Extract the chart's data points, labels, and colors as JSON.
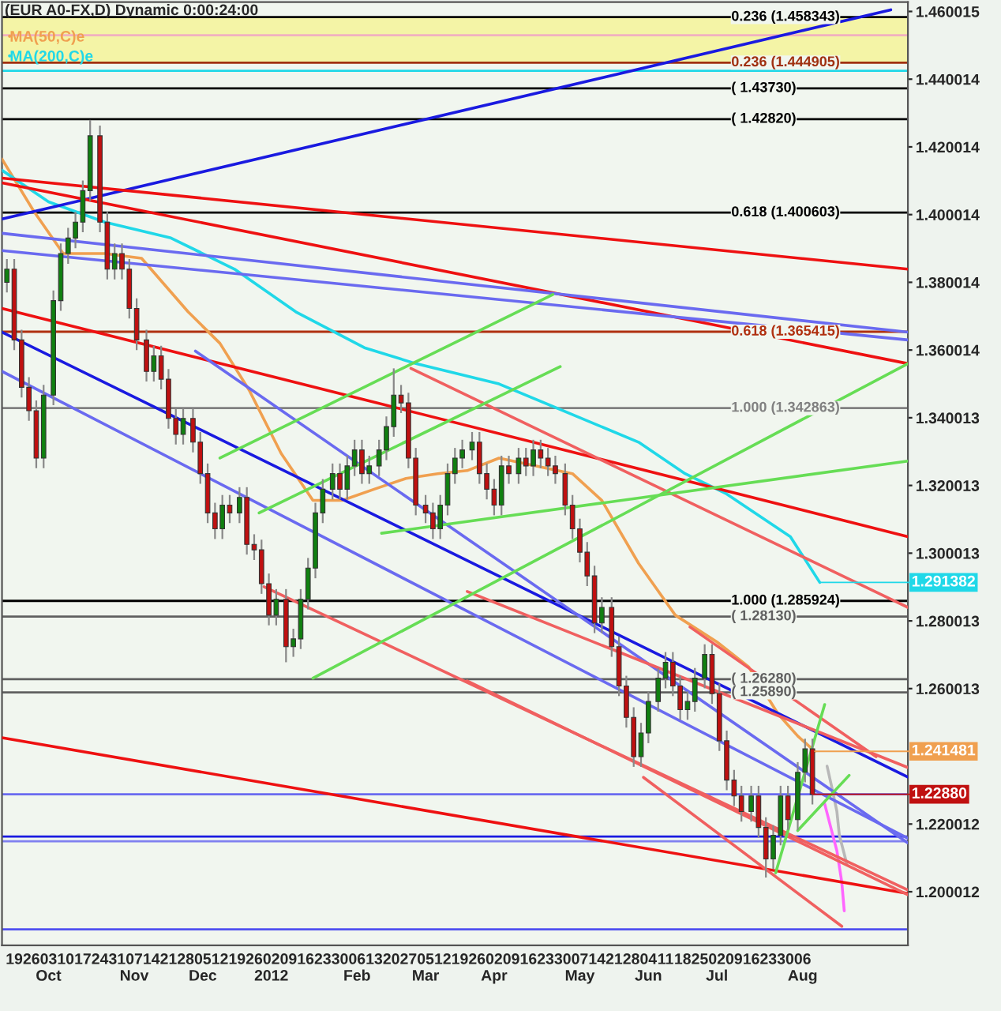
{
  "chart_data": {
    "type": "candlestick",
    "title": "(EUR A0-FX,D) Dynamic 0:00:24:00",
    "x": [
      "2011-09-16",
      "2011-09-19",
      "2011-09-22",
      "2011-09-25",
      "2011-09-28",
      "2011-10-01",
      "2011-10-05",
      "2011-10-08",
      "2011-10-11",
      "2011-10-14",
      "2011-10-17",
      "2011-10-20",
      "2011-10-24",
      "2011-10-27",
      "2011-10-30",
      "2011-11-02",
      "2011-11-05",
      "2011-11-08",
      "2011-11-12",
      "2011-11-15",
      "2011-11-18",
      "2011-11-21",
      "2011-11-24",
      "2011-11-27",
      "2011-12-01",
      "2011-12-04",
      "2011-12-07",
      "2011-12-10",
      "2011-12-13",
      "2011-12-16",
      "2011-12-20",
      "2011-12-23",
      "2011-12-26",
      "2011-12-29",
      "2012-01-01",
      "2012-01-04",
      "2012-01-08",
      "2012-01-11",
      "2012-01-14",
      "2012-01-17",
      "2012-01-20",
      "2012-01-23",
      "2012-01-27",
      "2012-01-30",
      "2012-02-02",
      "2012-02-05",
      "2012-02-08",
      "2012-02-11",
      "2012-02-15",
      "2012-02-18",
      "2012-02-21",
      "2012-02-24",
      "2012-02-27",
      "2012-03-01",
      "2012-03-05",
      "2012-03-08",
      "2012-03-11",
      "2012-03-14",
      "2012-03-17",
      "2012-03-20",
      "2012-03-24",
      "2012-03-27",
      "2012-03-30",
      "2012-04-02",
      "2012-04-05",
      "2012-04-08",
      "2012-04-12",
      "2012-04-15",
      "2012-04-18",
      "2012-04-21",
      "2012-04-24",
      "2012-04-27",
      "2012-05-01",
      "2012-05-04",
      "2012-05-07",
      "2012-05-10",
      "2012-05-13",
      "2012-05-16",
      "2012-05-20",
      "2012-05-23",
      "2012-05-26",
      "2012-05-29",
      "2012-06-01",
      "2012-06-04",
      "2012-06-08",
      "2012-06-11",
      "2012-06-14",
      "2012-06-17",
      "2012-06-20",
      "2012-06-23",
      "2012-06-27",
      "2012-06-30",
      "2012-07-03",
      "2012-07-06",
      "2012-07-09",
      "2012-07-12",
      "2012-07-16",
      "2012-07-19",
      "2012-07-22",
      "2012-07-25",
      "2012-07-28",
      "2012-07-31",
      "2012-08-04",
      "2012-08-07",
      "2012-08-10"
    ],
    "ohlc": [
      [
        1.38,
        1.3869,
        1.377,
        1.3839
      ],
      [
        1.3839,
        1.3869,
        1.36,
        1.363
      ],
      [
        1.363,
        1.366,
        1.346,
        1.349
      ],
      [
        1.349,
        1.352,
        1.3391,
        1.3421
      ],
      [
        1.3421,
        1.3451,
        1.3251,
        1.3281
      ],
      [
        1.3281,
        1.3497,
        1.3251,
        1.3467
      ],
      [
        1.3467,
        1.3776,
        1.3437,
        1.3746
      ],
      [
        1.3746,
        1.3915,
        1.3716,
        1.3885
      ],
      [
        1.3885,
        1.3961,
        1.3855,
        1.3931
      ],
      [
        1.3931,
        1.4008,
        1.3901,
        1.3978
      ],
      [
        1.3978,
        1.4101,
        1.3948,
        1.4071
      ],
      [
        1.4071,
        1.428,
        1.4041,
        1.4233
      ],
      [
        1.4233,
        1.4263,
        1.3948,
        1.3978
      ],
      [
        1.3978,
        1.4008,
        1.3809,
        1.3839
      ],
      [
        1.3839,
        1.3915,
        1.3809,
        1.3885
      ],
      [
        1.3885,
        1.3915,
        1.3809,
        1.3839
      ],
      [
        1.3839,
        1.3869,
        1.3693,
        1.3723
      ],
      [
        1.3723,
        1.3753,
        1.36,
        1.363
      ],
      [
        1.363,
        1.366,
        1.3507,
        1.3537
      ],
      [
        1.3537,
        1.3613,
        1.3507,
        1.3583
      ],
      [
        1.3583,
        1.3613,
        1.3484,
        1.3514
      ],
      [
        1.3514,
        1.3544,
        1.3368,
        1.3398
      ],
      [
        1.3398,
        1.3428,
        1.3321,
        1.3351
      ],
      [
        1.3351,
        1.3428,
        1.3321,
        1.3398
      ],
      [
        1.3398,
        1.3428,
        1.3298,
        1.3328
      ],
      [
        1.3328,
        1.3358,
        1.3205,
        1.3235
      ],
      [
        1.3235,
        1.3265,
        1.3089,
        1.3119
      ],
      [
        1.3119,
        1.3149,
        1.3042,
        1.3072
      ],
      [
        1.3072,
        1.3172,
        1.3042,
        1.3142
      ],
      [
        1.3142,
        1.3172,
        1.3089,
        1.3119
      ],
      [
        1.3119,
        1.3195,
        1.3089,
        1.3165
      ],
      [
        1.3165,
        1.3195,
        1.2996,
        1.3026
      ],
      [
        1.3026,
        1.3056,
        1.298,
        1.301
      ],
      [
        1.301,
        1.304,
        1.288,
        1.291
      ],
      [
        1.291,
        1.294,
        1.2787,
        1.2817
      ],
      [
        1.2817,
        1.2894,
        1.2787,
        1.2864
      ],
      [
        1.2864,
        1.2894,
        1.2678,
        1.2724
      ],
      [
        1.2724,
        1.2777,
        1.2694,
        1.2747
      ],
      [
        1.2747,
        1.2894,
        1.2717,
        1.2864
      ],
      [
        1.2864,
        1.2986,
        1.2834,
        1.2956
      ],
      [
        1.2956,
        1.3149,
        1.2926,
        1.3119
      ],
      [
        1.3119,
        1.3219,
        1.3089,
        1.3189
      ],
      [
        1.3189,
        1.3265,
        1.3159,
        1.3235
      ],
      [
        1.3235,
        1.3265,
        1.3159,
        1.3189
      ],
      [
        1.3189,
        1.3288,
        1.3159,
        1.3258
      ],
      [
        1.3258,
        1.3335,
        1.3228,
        1.3305
      ],
      [
        1.3305,
        1.3335,
        1.3205,
        1.3235
      ],
      [
        1.3235,
        1.3288,
        1.3205,
        1.3258
      ],
      [
        1.3258,
        1.3335,
        1.3228,
        1.3305
      ],
      [
        1.3305,
        1.3404,
        1.3275,
        1.3374
      ],
      [
        1.3374,
        1.3546,
        1.3344,
        1.3467
      ],
      [
        1.3467,
        1.3497,
        1.3414,
        1.3444
      ],
      [
        1.3444,
        1.3474,
        1.3251,
        1.3281
      ],
      [
        1.3281,
        1.3311,
        1.3112,
        1.3142
      ],
      [
        1.3142,
        1.3172,
        1.3089,
        1.3119
      ],
      [
        1.3119,
        1.3149,
        1.3042,
        1.3072
      ],
      [
        1.3072,
        1.3172,
        1.3042,
        1.3142
      ],
      [
        1.3142,
        1.3265,
        1.3112,
        1.3235
      ],
      [
        1.3235,
        1.3311,
        1.3205,
        1.3281
      ],
      [
        1.3281,
        1.3335,
        1.3251,
        1.3305
      ],
      [
        1.3305,
        1.3358,
        1.3275,
        1.3328
      ],
      [
        1.3328,
        1.3358,
        1.3205,
        1.3235
      ],
      [
        1.3235,
        1.3265,
        1.3159,
        1.3189
      ],
      [
        1.3189,
        1.3219,
        1.3112,
        1.3142
      ],
      [
        1.3142,
        1.3288,
        1.3112,
        1.3258
      ],
      [
        1.3258,
        1.3288,
        1.3205,
        1.3235
      ],
      [
        1.3235,
        1.3311,
        1.3205,
        1.3281
      ],
      [
        1.3281,
        1.3311,
        1.3228,
        1.3258
      ],
      [
        1.3258,
        1.3335,
        1.3228,
        1.3305
      ],
      [
        1.3305,
        1.3335,
        1.3251,
        1.3281
      ],
      [
        1.3281,
        1.3311,
        1.3228,
        1.3258
      ],
      [
        1.3258,
        1.3288,
        1.3205,
        1.3235
      ],
      [
        1.3235,
        1.3265,
        1.3112,
        1.3142
      ],
      [
        1.3142,
        1.3172,
        1.3042,
        1.3072
      ],
      [
        1.3072,
        1.3102,
        1.2973,
        1.3003
      ],
      [
        1.3003,
        1.3033,
        1.2903,
        1.2933
      ],
      [
        1.2933,
        1.2963,
        1.2764,
        1.2794
      ],
      [
        1.2794,
        1.287,
        1.2764,
        1.284
      ],
      [
        1.284,
        1.287,
        1.2694,
        1.2724
      ],
      [
        1.2724,
        1.2754,
        1.2578,
        1.2608
      ],
      [
        1.2608,
        1.2638,
        1.2485,
        1.2515
      ],
      [
        1.2515,
        1.2545,
        1.2369,
        1.2399
      ],
      [
        1.2399,
        1.2499,
        1.2369,
        1.2469
      ],
      [
        1.2469,
        1.2592,
        1.2439,
        1.2562
      ],
      [
        1.2562,
        1.2661,
        1.2532,
        1.2631
      ],
      [
        1.2631,
        1.2708,
        1.2601,
        1.2678
      ],
      [
        1.2678,
        1.2708,
        1.2578,
        1.2608
      ],
      [
        1.2608,
        1.2638,
        1.2508,
        1.2538
      ],
      [
        1.2538,
        1.2592,
        1.2508,
        1.2562
      ],
      [
        1.2562,
        1.2661,
        1.2532,
        1.2631
      ],
      [
        1.2631,
        1.2731,
        1.2601,
        1.2701
      ],
      [
        1.2701,
        1.2731,
        1.2555,
        1.2585
      ],
      [
        1.2585,
        1.2615,
        1.2416,
        1.2446
      ],
      [
        1.2446,
        1.2476,
        1.23,
        1.233
      ],
      [
        1.233,
        1.236,
        1.2253,
        1.2283
      ],
      [
        1.2283,
        1.2313,
        1.2207,
        1.2237
      ],
      [
        1.2237,
        1.2313,
        1.2207,
        1.2283
      ],
      [
        1.2283,
        1.2313,
        1.216,
        1.219
      ],
      [
        1.219,
        1.222,
        1.2042,
        1.2097
      ],
      [
        1.2097,
        1.2197,
        1.2067,
        1.2167
      ],
      [
        1.2167,
        1.2313,
        1.2137,
        1.2283
      ],
      [
        1.2283,
        1.2313,
        1.2183,
        1.2213
      ],
      [
        1.2213,
        1.2383,
        1.2183,
        1.2353
      ],
      [
        1.2353,
        1.2452,
        1.2323,
        1.2422
      ],
      [
        1.2422,
        1.2452,
        1.2258,
        1.2288
      ]
    ],
    "series": [
      {
        "type": "line",
        "name": "MA(50,C)e",
        "color": "#f0a050",
        "x": [
          "2011-09-14",
          "2011-09-27",
          "2011-10-09",
          "2011-10-26",
          "2011-11-10",
          "2011-11-29",
          "2011-12-12",
          "2011-12-24",
          "2012-01-06",
          "2012-01-19",
          "2012-01-31",
          "2012-02-13",
          "2012-02-26",
          "2012-03-10",
          "2012-03-22",
          "2012-04-04",
          "2012-05-04",
          "2012-05-16",
          "2012-05-31",
          "2012-06-15",
          "2012-07-02",
          "2012-07-15",
          "2012-07-27",
          "2012-08-04",
          "2012-08-11"
        ],
        "values": [
          1.4164,
          1.401,
          1.3885,
          1.3885,
          1.3871,
          1.3713,
          1.362,
          1.3481,
          1.3295,
          1.3156,
          1.3156,
          1.3189,
          1.3221,
          1.3235,
          1.3244,
          1.3281,
          1.3235,
          1.3156,
          1.297,
          1.2817,
          1.2738,
          1.2664,
          1.2525,
          1.246,
          1.241481
        ]
      },
      {
        "type": "line",
        "name": "MA(200,C)e",
        "color": "#20d8e8",
        "x": [
          "2011-09-14",
          "2011-10-03",
          "2011-10-26",
          "2011-11-22",
          "2011-12-18",
          "2012-01-12",
          "2012-02-09",
          "2012-03-01",
          "2012-04-04",
          "2012-05-31",
          "2012-06-19",
          "2012-07-06",
          "2012-08-01",
          "2012-08-13"
        ],
        "values": [
          1.4131,
          1.4038,
          1.3978,
          1.3931,
          1.3839,
          1.3713,
          1.3607,
          1.356,
          1.35,
          1.3328,
          1.3235,
          1.3175,
          1.3049,
          1.291382
        ]
      },
      {
        "type": "line",
        "color": "#ff66ff",
        "x": [
          "2012-08-15",
          "2012-08-18",
          "2012-08-20",
          "2012-08-22",
          "2012-08-23"
        ],
        "values": [
          1.226,
          1.2176,
          1.2121,
          1.2028,
          1.1944
        ]
      },
      {
        "type": "line",
        "color": "#b8b8b8",
        "x": [
          "2012-08-16",
          "2012-08-18",
          "2012-08-20",
          "2012-08-21",
          "2012-08-24"
        ],
        "values": [
          1.2371,
          1.2306,
          1.2237,
          1.2167,
          1.2084
        ]
      },
      {
        "type": "line",
        "color": "#1a1ae0",
        "x": [
          "2011-09-14",
          "2012-09-11"
        ],
        "values": [
          1.3987,
          1.4605
        ]
      },
      {
        "type": "line",
        "color": "#ee1111",
        "x": [
          "2011-09-14",
          "2012-09-18"
        ],
        "values": [
          1.4108,
          1.3839
        ]
      },
      {
        "type": "line",
        "color": "#ee1111",
        "x": [
          "2011-09-14",
          "2012-09-18"
        ],
        "values": [
          1.4094,
          1.356
        ]
      },
      {
        "type": "line",
        "color": "#ee1111",
        "x": [
          "2011-09-14",
          "2012-09-18"
        ],
        "values": [
          1.3723,
          1.3049
        ]
      },
      {
        "type": "line",
        "color": "#ee1111",
        "x": [
          "2011-09-14",
          "2012-09-18"
        ],
        "values": [
          1.2455,
          1.1995
        ]
      },
      {
        "type": "line",
        "color": "#1a1ae0",
        "x": [
          "2011-09-14",
          "2012-09-18"
        ],
        "values": [
          1.3653,
          1.2339
        ]
      },
      {
        "type": "line",
        "color": "#6a6af0",
        "x": [
          "2011-09-14",
          "2012-09-18"
        ],
        "values": [
          1.3945,
          1.3653
        ]
      },
      {
        "type": "line",
        "color": "#6a6af0",
        "x": [
          "2011-09-14",
          "2012-09-18"
        ],
        "values": [
          1.3894,
          1.363
        ]
      },
      {
        "type": "line",
        "color": "#6a6af0",
        "x": [
          "2011-09-14",
          "2012-09-18"
        ],
        "values": [
          1.3537,
          1.2158
        ]
      },
      {
        "type": "line",
        "color": "#6a6af0",
        "x": [
          "2011-12-02",
          "2012-09-18"
        ],
        "values": [
          1.3597,
          1.2144
        ]
      },
      {
        "type": "line",
        "color": "#f06060",
        "x": [
          "2012-02-28",
          "2012-09-18"
        ],
        "values": [
          1.3546,
          1.284
        ]
      },
      {
        "type": "line",
        "color": "#f06060",
        "x": [
          "2012-03-22",
          "2012-09-18"
        ],
        "values": [
          1.2887,
          1.2367
        ]
      },
      {
        "type": "line",
        "color": "#f06060",
        "x": [
          "2012-03-22",
          "2012-09-18"
        ],
        "values": [
          1.2623,
          1.1991
        ]
      },
      {
        "type": "line",
        "color": "#f06060",
        "x": [
          "2012-06-02",
          "2012-08-22"
        ],
        "values": [
          1.2338,
          1.1898
        ]
      },
      {
        "type": "line",
        "color": "#f06060",
        "x": [
          "2012-06-21",
          "2012-09-05"
        ],
        "values": [
          1.2782,
          1.2399
        ]
      },
      {
        "type": "line",
        "color": "#f06060",
        "x": [
          "2011-12-30",
          "2012-09-18"
        ],
        "values": [
          1.2901,
          1.2005
        ]
      },
      {
        "type": "line",
        "color": "#66dd55",
        "x": [
          "2011-12-12",
          "2012-04-26"
        ],
        "values": [
          1.3281,
          1.3764
        ]
      },
      {
        "type": "line",
        "color": "#66dd55",
        "x": [
          "2011-12-28",
          "2012-04-29"
        ],
        "values": [
          1.3119,
          1.3551
        ]
      },
      {
        "type": "line",
        "color": "#66dd55",
        "x": [
          "2012-01-19",
          "2012-09-18"
        ],
        "values": [
          1.2631,
          1.356
        ]
      },
      {
        "type": "line",
        "color": "#66dd55",
        "x": [
          "2012-02-16",
          "2012-09-18"
        ],
        "values": [
          1.3059,
          1.3272
        ]
      },
      {
        "type": "line",
        "color": "#66dd55",
        "x": [
          "2012-07-26",
          "2012-08-15"
        ],
        "values": [
          1.2056,
          1.2553
        ]
      },
      {
        "type": "line",
        "color": "#66dd55",
        "x": [
          "2012-08-04",
          "2012-08-25"
        ],
        "values": [
          1.2181,
          1.2344
        ]
      }
    ],
    "bands": [
      {
        "axis": "y",
        "from": 1.444905,
        "to": 1.458343,
        "color": "#f4f4a6"
      }
    ],
    "ref_lines": [
      {
        "axis": "y",
        "value": 1.458343,
        "label": "0.236 (1.458343)",
        "color": "#000000"
      },
      {
        "axis": "y",
        "value": 1.453,
        "color": "#f0b0c0"
      },
      {
        "axis": "y",
        "value": 1.444905,
        "label": "0.236 (1.444905)",
        "color": "#a03010"
      },
      {
        "axis": "y",
        "value": 1.4425,
        "color": "#20d8e8"
      },
      {
        "axis": "y",
        "value": 1.4373,
        "label": "( 1.43730)",
        "color": "#000000"
      },
      {
        "axis": "y",
        "value": 1.4282,
        "label": "( 1.42820)",
        "color": "#000000"
      },
      {
        "axis": "y",
        "value": 1.400603,
        "label": "0.618 (1.400603)",
        "color": "#000000"
      },
      {
        "axis": "y",
        "value": 1.365415,
        "label": "0.618 (1.365415)",
        "color": "#b03010"
      },
      {
        "axis": "y",
        "value": 1.342863,
        "label": "1.000 (1.342863)",
        "color": "#808080"
      },
      {
        "axis": "y",
        "value": 1.285924,
        "label": "1.000 (1.285924)",
        "color": "#000000"
      },
      {
        "axis": "y",
        "value": 1.2813,
        "label": "( 1.28130)",
        "color": "#606060"
      },
      {
        "axis": "y",
        "value": 1.2628,
        "label": "( 1.26280)",
        "color": "#606060"
      },
      {
        "axis": "y",
        "value": 1.2589,
        "label": "( 1.25890)",
        "color": "#606060"
      },
      {
        "axis": "y",
        "value": 1.2288,
        "color": "#6a6af0"
      },
      {
        "axis": "y",
        "value": 1.2163,
        "color": "#1a1ae0"
      },
      {
        "axis": "y",
        "value": 1.2149,
        "color": "#8080f0"
      },
      {
        "axis": "y",
        "value": 1.1889,
        "color": "#5050f0"
      }
    ],
    "annotations": [
      {
        "text": "1.291382",
        "x": "2012-08-13",
        "y": 1.291382
      },
      {
        "text": "1.241481",
        "x": "2012-08-11",
        "y": 1.241481
      },
      {
        "text": "1.22880",
        "x": "2012-08-10",
        "y": 1.2288
      }
    ],
    "legend": "top left",
    "xlim": [
      "2011-09-14",
      "2012-09-18"
    ],
    "ylim": [
      1.1842,
      1.4628
    ],
    "yticks": [
      1.460015,
      1.440014,
      1.420014,
      1.400014,
      1.380014,
      1.360014,
      1.340013,
      1.320013,
      1.300013,
      1.280013,
      1.260013,
      1.220012,
      1.200012
    ],
    "xticks": [
      {
        "value": "2011-09-19",
        "label": "19"
      },
      {
        "value": "2011-09-26",
        "label": "26"
      },
      {
        "value": "2011-10-03",
        "label": "03\nOct"
      },
      {
        "value": "2011-10-10",
        "label": "10"
      },
      {
        "value": "2011-10-17",
        "label": "17"
      },
      {
        "value": "2011-10-24",
        "label": "24"
      },
      {
        "value": "2011-10-31",
        "label": "31"
      },
      {
        "value": "2011-11-07",
        "label": "07\nNov"
      },
      {
        "value": "2011-11-14",
        "label": "14"
      },
      {
        "value": "2011-11-21",
        "label": "21"
      },
      {
        "value": "2011-11-28",
        "label": "28"
      },
      {
        "value": "2011-12-05",
        "label": "05\nDec"
      },
      {
        "value": "2011-12-12",
        "label": "12"
      },
      {
        "value": "2011-12-19",
        "label": "19"
      },
      {
        "value": "2011-12-26",
        "label": "26"
      },
      {
        "value": "2012-01-02",
        "label": "02\n2012"
      },
      {
        "value": "2012-01-09",
        "label": "09"
      },
      {
        "value": "2012-01-16",
        "label": "16"
      },
      {
        "value": "2012-01-23",
        "label": "23"
      },
      {
        "value": "2012-01-30",
        "label": "30"
      },
      {
        "value": "2012-02-06",
        "label": "06\nFeb"
      },
      {
        "value": "2012-02-13",
        "label": "13"
      },
      {
        "value": "2012-02-20",
        "label": "20"
      },
      {
        "value": "2012-02-27",
        "label": "27"
      },
      {
        "value": "2012-03-05",
        "label": "05\nMar"
      },
      {
        "value": "2012-03-12",
        "label": "12"
      },
      {
        "value": "2012-03-19",
        "label": "19"
      },
      {
        "value": "2012-03-26",
        "label": "26"
      },
      {
        "value": "2012-04-02",
        "label": "02\nApr"
      },
      {
        "value": "2012-04-09",
        "label": "09"
      },
      {
        "value": "2012-04-16",
        "label": "16"
      },
      {
        "value": "2012-04-23",
        "label": "23"
      },
      {
        "value": "2012-04-30",
        "label": "30"
      },
      {
        "value": "2012-05-07",
        "label": "07\nMay"
      },
      {
        "value": "2012-05-14",
        "label": "14"
      },
      {
        "value": "2012-05-21",
        "label": "21"
      },
      {
        "value": "2012-05-28",
        "label": "28"
      },
      {
        "value": "2012-06-04",
        "label": "04\nJun"
      },
      {
        "value": "2012-06-11",
        "label": "11"
      },
      {
        "value": "2012-06-18",
        "label": "18"
      },
      {
        "value": "2012-06-25",
        "label": "25"
      },
      {
        "value": "2012-07-02",
        "label": "02\nJul"
      },
      {
        "value": "2012-07-09",
        "label": "09"
      },
      {
        "value": "2012-07-16",
        "label": "16"
      },
      {
        "value": "2012-07-23",
        "label": "23"
      },
      {
        "value": "2012-07-30",
        "label": "30"
      },
      {
        "value": "2012-08-06",
        "label": "06\nAug"
      }
    ]
  }
}
